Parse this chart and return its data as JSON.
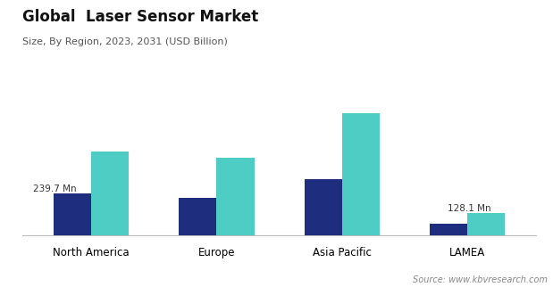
{
  "title": "Global  Laser Sensor Market",
  "subtitle": "Size, By Region, 2023, 2031 (USD Billion)",
  "categories": [
    "North America",
    "Europe",
    "Asia Pacific",
    "LAMEA"
  ],
  "values_2023": [
    239.7,
    215,
    320,
    68
  ],
  "values_2031": [
    480,
    445,
    700,
    128.1
  ],
  "color_2023": "#1f2d7e",
  "color_2031": "#4ecdc4",
  "source_text": "Source: www.kbvresearch.com",
  "background_color": "#ffffff",
  "ylim": [
    0,
    820
  ],
  "bar_width": 0.3,
  "anno_239": "239.7 Mn",
  "anno_128": "128.1 Mn"
}
